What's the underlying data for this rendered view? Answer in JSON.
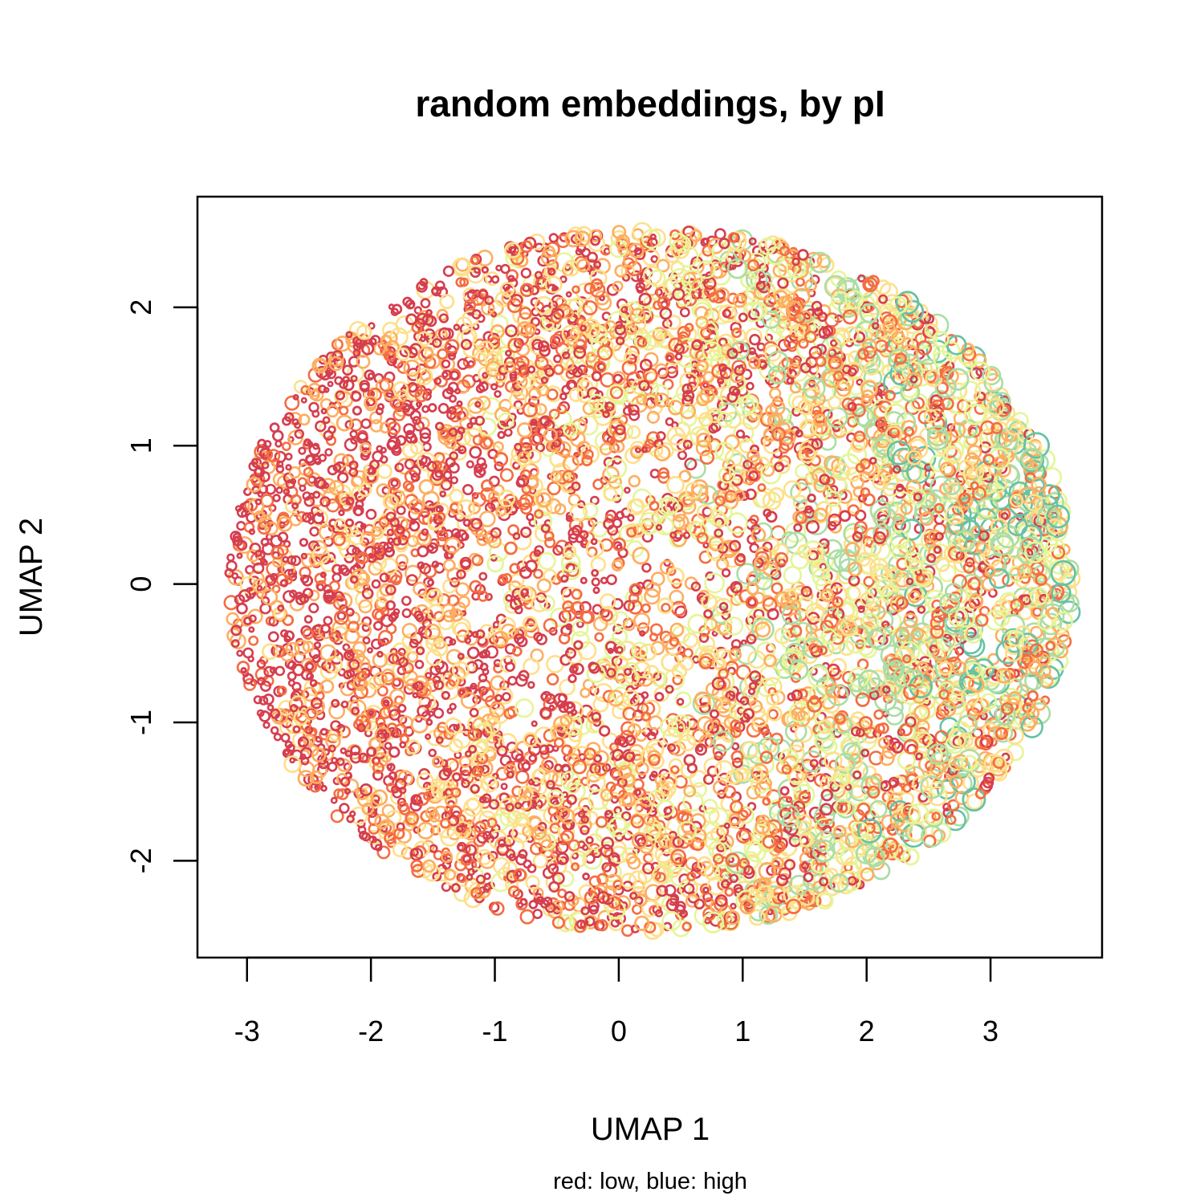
{
  "chart_data": {
    "type": "scatter",
    "title": "random embeddings, by pI",
    "xlabel": "UMAP 1",
    "ylabel": "UMAP 2",
    "caption": "red: low, blue: high",
    "xlim": [
      -3.4,
      3.9
    ],
    "ylim": [
      -2.7,
      2.8
    ],
    "x_ticks": [
      -3,
      -2,
      -1,
      0,
      1,
      2,
      3
    ],
    "y_ticks": [
      -2,
      -1,
      0,
      1,
      2
    ],
    "x_tick_labels": [
      "-3",
      "-2",
      "-1",
      "0",
      "1",
      "2",
      "3"
    ],
    "y_tick_labels": [
      "-2",
      "-1",
      "0",
      "1",
      "2"
    ],
    "grid": false,
    "legend": "none",
    "marker": "open-circle",
    "color_scale": {
      "variable": "pI",
      "low": "red",
      "high": "blue",
      "palette": [
        "#d53e4f",
        "#f46d43",
        "#fdae61",
        "#fee08b",
        "#e6f598",
        "#abdda4",
        "#66c2a5",
        "#3288bd"
      ]
    },
    "cloud": {
      "center": [
        0.25,
        0.03
      ],
      "x_extent": [
        -3.15,
        3.65
      ],
      "y_extent": [
        -2.5,
        2.6
      ],
      "approx_points": 20000,
      "trend": "low pI (red/orange) concentrated toward negative UMAP 1; high pI (green/blue) more frequent toward positive UMAP 1"
    }
  }
}
